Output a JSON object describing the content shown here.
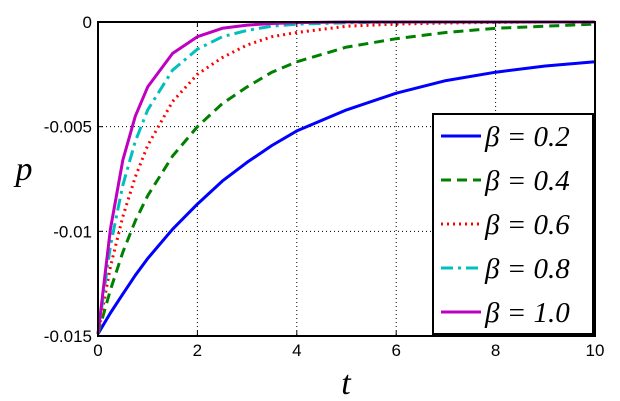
{
  "chart_data": {
    "type": "line",
    "xlabel": "t",
    "ylabel": "p",
    "xlim": [
      0,
      10
    ],
    "ylim": [
      -0.015,
      0
    ],
    "xticks": [
      0,
      2,
      4,
      6,
      8,
      10
    ],
    "xtick_labels": [
      "0",
      "2",
      "4",
      "6",
      "8",
      "10"
    ],
    "yticks": [
      -0.015,
      -0.01,
      -0.005,
      0
    ],
    "ytick_labels": [
      "-0.015",
      "-0.01",
      "-0.005",
      "0"
    ],
    "grid": true,
    "legend_position": "bottom-right",
    "x": [
      0,
      0.25,
      0.5,
      0.75,
      1,
      1.5,
      2,
      2.5,
      3,
      3.5,
      4,
      5,
      6,
      7,
      8,
      9,
      10
    ],
    "series": [
      {
        "name": "β = 0.2",
        "color": "#0000ff",
        "style": "solid",
        "values": [
          -0.0149,
          -0.0139,
          -0.013,
          -0.0121,
          -0.0113,
          -0.0099,
          -0.0087,
          -0.0076,
          -0.0067,
          -0.0059,
          -0.0052,
          -0.0042,
          -0.0034,
          -0.0028,
          -0.0024,
          -0.0021,
          -0.0019
        ]
      },
      {
        "name": "β = 0.4",
        "color": "#008000",
        "style": "dashed",
        "values": [
          -0.0149,
          -0.0128,
          -0.011,
          -0.0095,
          -0.0083,
          -0.0064,
          -0.005,
          -0.0039,
          -0.0031,
          -0.0024,
          -0.0019,
          -0.0012,
          -0.0008,
          -0.0005,
          -0.0003,
          -0.0002,
          -0.0001
        ]
      },
      {
        "name": "β = 0.6",
        "color": "#ff0000",
        "style": "dotted",
        "values": [
          -0.0149,
          -0.0117,
          -0.0093,
          -0.0074,
          -0.0059,
          -0.0038,
          -0.0025,
          -0.0017,
          -0.0011,
          -0.0007,
          -0.0005,
          -0.0002,
          -0.0001,
          -5e-05,
          -2e-05,
          0,
          0
        ]
      },
      {
        "name": "β = 0.8",
        "color": "#00bfbf",
        "style": "dashdot",
        "values": [
          -0.0149,
          -0.0107,
          -0.0078,
          -0.0057,
          -0.0042,
          -0.0023,
          -0.0013,
          -0.0007,
          -0.0004,
          -0.0002,
          -0.0001,
          -4e-05,
          0,
          0,
          0,
          0,
          0
        ]
      },
      {
        "name": "β = 1.0",
        "color": "#bf00bf",
        "style": "solid",
        "values": [
          -0.0149,
          -0.0099,
          -0.0066,
          -0.0045,
          -0.0031,
          -0.0015,
          -0.0007,
          -0.0003,
          -0.00015,
          -7e-05,
          -3e-05,
          0,
          0,
          0,
          0,
          0,
          0
        ]
      }
    ]
  }
}
